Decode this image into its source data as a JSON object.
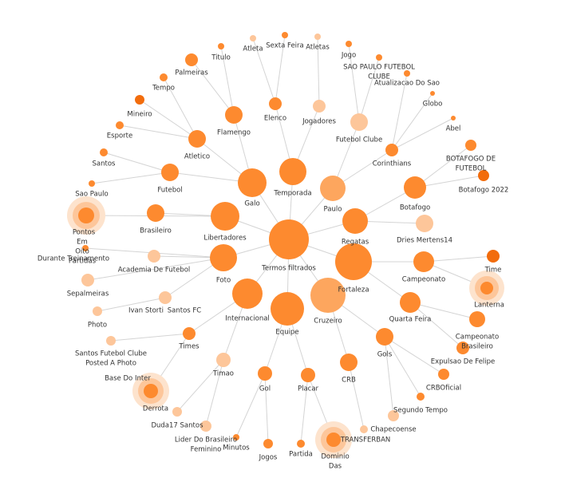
{
  "nodes": [
    {
      "label": [
        "Termos filtrados"
      ]
    },
    {
      "label": [
        "Galo"
      ]
    },
    {
      "label": [
        "Temporada"
      ]
    },
    {
      "label": [
        "Paulo"
      ]
    },
    {
      "label": [
        "Regatas"
      ]
    },
    {
      "label": [
        "Fortaleza"
      ]
    },
    {
      "label": [
        "Cruzeiro"
      ]
    },
    {
      "label": [
        "Equipe"
      ]
    },
    {
      "label": [
        "Internacional"
      ]
    },
    {
      "label": [
        "Foto"
      ]
    },
    {
      "label": [
        "Libertadores"
      ]
    },
    {
      "label": [
        "Flamengo"
      ]
    },
    {
      "label": [
        "Atletico"
      ]
    },
    {
      "label": [
        "Futebol"
      ]
    },
    {
      "label": [
        "Palmeiras"
      ]
    },
    {
      "label": [
        "Titulo"
      ]
    },
    {
      "label": [
        "Tempo"
      ]
    },
    {
      "label": [
        "Mineiro"
      ]
    },
    {
      "label": [
        "Esporte"
      ]
    },
    {
      "label": [
        "Santos"
      ]
    },
    {
      "label": [
        "Sao Paulo"
      ]
    },
    {
      "label": [
        "Brasileiro"
      ]
    },
    {
      "label": [
        "Pontos"
      ]
    },
    {
      "label": [
        "Em",
        "Oito",
        "Partidas"
      ]
    },
    {
      "label": [
        "Durante Treinamento"
      ]
    },
    {
      "label": [
        "Academia De Futebol"
      ]
    },
    {
      "label": [
        "Sepalmeiras"
      ]
    },
    {
      "label": [
        "Santos FC"
      ]
    },
    {
      "label": [
        "Ivan Storti"
      ]
    },
    {
      "label": [
        "Photo"
      ]
    },
    {
      "label": [
        "Times"
      ]
    },
    {
      "label": [
        "Timao"
      ]
    },
    {
      "label": [
        "Santos Futebol Clube",
        "Posted A Photo"
      ]
    },
    {
      "label": [
        "Base Do Inter"
      ]
    },
    {
      "label": [
        "Derrota"
      ]
    },
    {
      "label": [
        "Duda17 Santos"
      ]
    },
    {
      "label": [
        "Lider Do Brasileiro",
        "Feminino"
      ]
    },
    {
      "label": [
        "Gol"
      ]
    },
    {
      "label": [
        "Placar"
      ]
    },
    {
      "label": [
        "Minutos"
      ]
    },
    {
      "label": [
        "Jogos"
      ]
    },
    {
      "label": [
        "Partida"
      ]
    },
    {
      "label": [
        "Dominio",
        "Das"
      ]
    },
    {
      "label": [
        "CRB"
      ]
    },
    {
      "label": [
        "TRANSFERBAN"
      ]
    },
    {
      "label": [
        "Gols"
      ]
    },
    {
      "label": [
        "Chapecoense"
      ]
    },
    {
      "label": [
        "Segundo Tempo"
      ]
    },
    {
      "label": [
        "CRBOficial"
      ]
    },
    {
      "label": [
        "Quarta Feira"
      ]
    },
    {
      "label": [
        "Campeonato"
      ]
    },
    {
      "label": [
        "Expulsao De Felipe"
      ]
    },
    {
      "label": [
        "Campeonato",
        "Brasileiro"
      ]
    },
    {
      "label": [
        "Lanterna"
      ]
    },
    {
      "label": [
        "Time"
      ]
    },
    {
      "label": [
        "Botafogo"
      ]
    },
    {
      "label": [
        "Dries Mertens14"
      ]
    },
    {
      "label": [
        "Botafogo 2022"
      ]
    },
    {
      "label": [
        "BOTAFOGO DE",
        "FUTEBOL"
      ]
    },
    {
      "label": [
        "Futebol Clube"
      ]
    },
    {
      "label": [
        "Corinthians"
      ]
    },
    {
      "label": [
        "Jogo"
      ]
    },
    {
      "label": [
        "SAO PAULO FUTEBOL",
        "CLUBE"
      ]
    },
    {
      "label": [
        "Atualizacao Do Sao"
      ]
    },
    {
      "label": [
        "Globo"
      ]
    },
    {
      "label": [
        "Abel"
      ]
    },
    {
      "label": [
        "Elenco"
      ]
    },
    {
      "label": [
        "Jogadores"
      ]
    },
    {
      "label": [
        "Atleta"
      ]
    },
    {
      "label": [
        "Sexta Feira"
      ]
    },
    {
      "label": [
        "Atletas"
      ]
    }
  ]
}
